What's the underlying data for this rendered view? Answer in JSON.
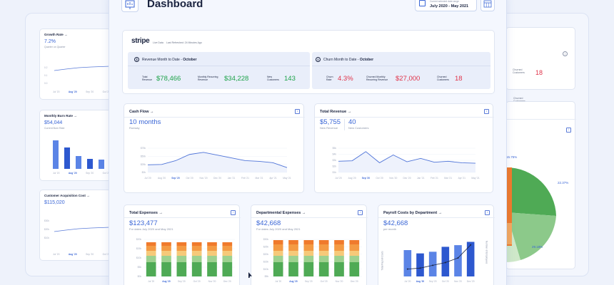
{
  "header": {
    "title": "Dashboard",
    "date_label": "Current selected date range",
    "date_range": "July 2020 - May 2021"
  },
  "left": {
    "growth": {
      "title": "Growth Rate →",
      "value": "7.2%",
      "sub": "Quarter on Quarter",
      "ticks": [
        "Jul '20",
        "Aug '20",
        "Sep '20",
        "Oct '20"
      ]
    },
    "burn": {
      "title": "Monthly Burn Rate →",
      "value": "$54,044",
      "sub": "Current Burn Rate",
      "ticks": [
        "Jul '20",
        "Aug '20",
        "Sep '20",
        "Oct '20"
      ],
      "bars": [
        40,
        30,
        18,
        14,
        13
      ]
    },
    "cac": {
      "title": "Customer Acquisition Cost →",
      "value": "$115,020",
      "ticks": [
        "Jul '20",
        "Aug '20",
        "Sep '20",
        "Oct '20"
      ]
    }
  },
  "stripe": {
    "logo": "stripe",
    "live": "Live Data",
    "refreshed": "Last Refreshed: 24 Minutes Ago",
    "revenue": {
      "title_prefix": "Revenue Month to Date - ",
      "title_month": "October",
      "metrics": [
        {
          "label": "Total Revenue",
          "value": "$78,466"
        },
        {
          "label": "Monthly Recurring Revenue",
          "value": "$34,228"
        },
        {
          "label": "New Customers",
          "value": "143"
        }
      ]
    },
    "churn": {
      "title_prefix": "Churn Month to Date - ",
      "title_month": "October",
      "metrics": [
        {
          "label": "Churn Rate",
          "value": "4.3%"
        },
        {
          "label": "Churned Monthly Recurring Revenue",
          "value": "$27,000"
        },
        {
          "label": "Churned Customers",
          "value": "18"
        }
      ]
    }
  },
  "cashflow": {
    "title": "Cash Flow →",
    "value": "10 months",
    "sub": "Runway",
    "yticks": [
      "$75k",
      "$50k",
      "$25k",
      "$0k"
    ],
    "xticks": [
      "Jul '20",
      "Aug '20",
      "Sep '20",
      "Oct '20",
      "Nov '20",
      "Dec '20",
      "Jan '21",
      "Feb '21",
      "Mar '21",
      "Apr '21",
      "May '21"
    ],
    "series": [
      22,
      23,
      34,
      52,
      58,
      50,
      42,
      34,
      32,
      28,
      14
    ]
  },
  "totalrev": {
    "title": "Total Revenue →",
    "value1": "$5,755",
    "sub1": "New Revenue",
    "value2": "40",
    "sub2": "New Customers",
    "yticks": [
      "$5k",
      "$4k",
      "$3k",
      "$2k",
      "$1k"
    ],
    "xticks": [
      "Jul '20",
      "Aug '20",
      "Sep '20",
      "Oct '20",
      "Nov '20",
      "Dec '20",
      "Jan '21",
      "Feb '21",
      "Mar '21",
      "Apr '21",
      "May '21"
    ],
    "series": [
      2.3,
      2.4,
      4.3,
      2.0,
      3.6,
      2.2,
      2.9,
      2.1,
      2.3,
      2.0,
      1.9
    ]
  },
  "expenses": {
    "title": "Total Expenses →",
    "value": "$123,477",
    "sub": "For dates July 2020 and May 2021",
    "yticks": [
      "$20k",
      "$15k",
      "$10k",
      "$5k",
      "$0k"
    ],
    "xticks": [
      "Jul '20",
      "Aug '20",
      "Sep '20",
      "Oct '20",
      "Nov '20",
      "Dec '20",
      "Jan '21",
      "Feb '21",
      "Mar '21",
      "Apr '21"
    ]
  },
  "departmental": {
    "title": "Departmental Expenses →",
    "value": "$42,668",
    "sub": "For dates July 2020 and May 2021",
    "yticks": [
      "$30k",
      "$25k",
      "$20k",
      "$15k",
      "$10k",
      "$5k"
    ],
    "xticks": [
      "Jul '20",
      "Aug '20",
      "Sep '20",
      "Oct '20",
      "Nov '20",
      "Dec '20",
      "Jan '21",
      "Feb '21",
      "Mar '21",
      "Apr '21"
    ]
  },
  "payroll": {
    "title": "Payroll Costs by Department →",
    "value": "$42,668",
    "sub": "per month",
    "ylabel": "Total Payroll Costs",
    "y2label": "Number of Employees",
    "xticks": [
      "Jul '20",
      "Aug '20",
      "Sep '20",
      "Oct '20",
      "Nov '20",
      "Dec '20"
    ],
    "bars": [
      32,
      28,
      30,
      36,
      38,
      42
    ],
    "line": [
      8,
      9,
      12,
      15,
      20,
      34
    ]
  },
  "right": {
    "churned_label": "Churned Customers",
    "churned_value": "18",
    "pie_labels": [
      "22.37%",
      "29.18%",
      "15.75%"
    ]
  },
  "colors": {
    "blue": "#3a66d6",
    "green": "#1ea34a",
    "red": "#e0344a",
    "pie_green": "#4faa55",
    "pie_orange": "#f07a2c",
    "pie_light": "#8cc98a"
  }
}
